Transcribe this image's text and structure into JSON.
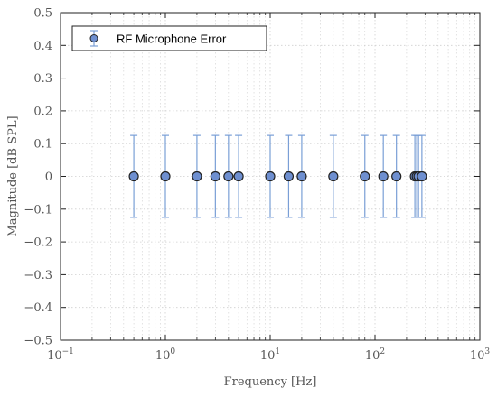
{
  "chart_data": {
    "type": "scatter",
    "xscale": "log",
    "xlabel": "Frequency [Hz]",
    "ylabel": "Magnitude [dB SPL]",
    "xlim": [
      0.1,
      1000
    ],
    "ylim": [
      -0.5,
      0.5
    ],
    "x_ticks": [
      {
        "value": 0.1,
        "base": "10",
        "exp": "−1"
      },
      {
        "value": 1,
        "base": "10",
        "exp": "0"
      },
      {
        "value": 10,
        "base": "10",
        "exp": "1"
      },
      {
        "value": 100,
        "base": "10",
        "exp": "2"
      },
      {
        "value": 1000,
        "base": "10",
        "exp": "3"
      }
    ],
    "y_ticks": [
      {
        "value": 0.5,
        "label": "0.5"
      },
      {
        "value": 0.4,
        "label": "0.4"
      },
      {
        "value": 0.3,
        "label": "0.3"
      },
      {
        "value": 0.2,
        "label": "0.2"
      },
      {
        "value": 0.1,
        "label": "0.1"
      },
      {
        "value": 0,
        "label": "0"
      },
      {
        "value": -0.1,
        "label": "−0.1"
      },
      {
        "value": -0.2,
        "label": "−0.2"
      },
      {
        "value": -0.3,
        "label": "−0.3"
      },
      {
        "value": -0.4,
        "label": "−0.4"
      },
      {
        "value": -0.5,
        "label": "−0.5"
      }
    ],
    "grid": true,
    "legend": {
      "position": "top-left",
      "entries": [
        "RF Microphone Error"
      ]
    },
    "series": [
      {
        "name": "RF Microphone Error",
        "color": "#7a9fd6",
        "errorbar_color": "#7a9fd6",
        "x": [
          0.5,
          1,
          2,
          3,
          4,
          5,
          10,
          15,
          20,
          40,
          80,
          120,
          160,
          240,
          250,
          260,
          280
        ],
        "y": [
          0,
          0,
          0,
          0,
          0,
          0,
          0,
          0,
          0,
          0,
          0,
          0,
          0,
          0,
          0,
          0,
          0
        ],
        "error": [
          0.125,
          0.125,
          0.125,
          0.125,
          0.125,
          0.125,
          0.125,
          0.125,
          0.125,
          0.125,
          0.125,
          0.125,
          0.125,
          0.125,
          0.125,
          0.125,
          0.125
        ]
      }
    ]
  }
}
